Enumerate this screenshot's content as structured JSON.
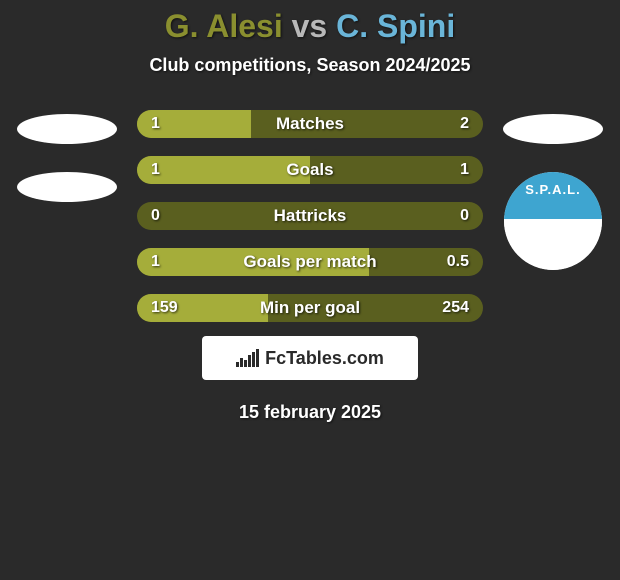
{
  "title_prefix": "G. Alesi",
  "title_vs": " vs ",
  "title_suffix": "C. Spini",
  "title_left_color": "#8a8f2f",
  "title_vs_color": "#b8b8b8",
  "title_right_color": "#6ab5d8",
  "subtitle": "Club competitions, Season 2024/2025",
  "bar_bg_color": "#5a5f1f",
  "left_fill_color": "#a5ad3a",
  "right_fill_color": "#2a2a2a",
  "badge_top_color": "#3ea5d0",
  "badge_bottom_color": "#ffffff",
  "badge_text": "S.P.A.L.",
  "stats": [
    {
      "label": "Matches",
      "left_val": "1",
      "right_val": "2",
      "left_pct": 33,
      "right_pct": 0
    },
    {
      "label": "Goals",
      "left_val": "1",
      "right_val": "1",
      "left_pct": 50,
      "right_pct": 0
    },
    {
      "label": "Hattricks",
      "left_val": "0",
      "right_val": "0",
      "left_pct": 0,
      "right_pct": 0
    },
    {
      "label": "Goals per match",
      "left_val": "1",
      "right_val": "0.5",
      "left_pct": 67,
      "right_pct": 0
    },
    {
      "label": "Min per goal",
      "left_val": "159",
      "right_val": "254",
      "left_pct": 38,
      "right_pct": 0
    }
  ],
  "watermark_text": "FcTables.com",
  "date_text": "15 february 2025"
}
